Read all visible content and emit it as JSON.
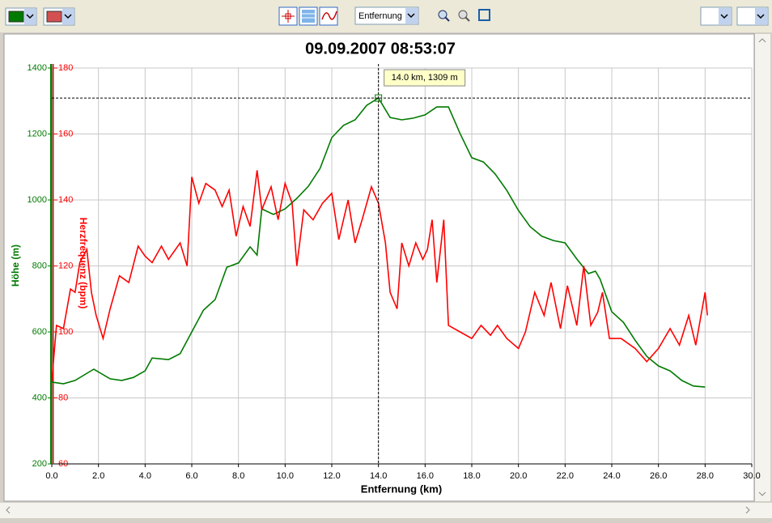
{
  "toolbar": {
    "axis_select": "Entfernung"
  },
  "chart_data": {
    "type": "line",
    "title": "09.09.2007 08:53:07",
    "xlabel": "Entfernung (km)",
    "ylabel": "Höhe (m)",
    "y2label": "Herzfrequenz (bpm)",
    "xlim": [
      0,
      30
    ],
    "xticks": [
      {
        "value": 0,
        "label": "0.0"
      },
      {
        "value": 2,
        "label": "2.0"
      },
      {
        "value": 4,
        "label": "4.0"
      },
      {
        "value": 6,
        "label": "6.0"
      },
      {
        "value": 8,
        "label": "8.0"
      },
      {
        "value": 10,
        "label": "10.0"
      },
      {
        "value": 12,
        "label": "12.0"
      },
      {
        "value": 14,
        "label": "14.0"
      },
      {
        "value": 16,
        "label": "16.0"
      },
      {
        "value": 18,
        "label": "18.0"
      },
      {
        "value": 20,
        "label": "20.0"
      },
      {
        "value": 22,
        "label": "22.0"
      },
      {
        "value": 24,
        "label": "24.0"
      },
      {
        "value": 26,
        "label": "26.0"
      },
      {
        "value": 28,
        "label": "28.0"
      },
      {
        "value": 30,
        "label": "30.0"
      }
    ],
    "ylim": [
      200,
      1400
    ],
    "yticks": [
      200,
      400,
      600,
      800,
      1000,
      1200,
      1400
    ],
    "y2lim": [
      60,
      180
    ],
    "y2ticks": [
      60,
      80,
      100,
      120,
      140,
      160,
      180
    ],
    "grid": true,
    "series": [
      {
        "color": "#007a00",
        "x": [
          0,
          0.5,
          1,
          1.8,
          2.5,
          3,
          3.5,
          4,
          4.3,
          5,
          5.5,
          6,
          6.5,
          7,
          7.5,
          8,
          8.5,
          8.8,
          9,
          9.5,
          10,
          10.5,
          11,
          11.5,
          12,
          12.5,
          13,
          13.5,
          14,
          14.5,
          15,
          15.5,
          16,
          16.5,
          17,
          17.5,
          18,
          18.5,
          19,
          19.5,
          20,
          20.5,
          21,
          21.5,
          22,
          22.5,
          23,
          23.3,
          23.5,
          24,
          24.5,
          25,
          25.5,
          26,
          26.5,
          27,
          27.5,
          28
        ],
        "values": [
          448,
          443,
          453,
          487,
          458,
          453,
          462,
          482,
          521,
          516,
          534,
          600,
          666,
          698,
          796,
          809,
          858,
          833,
          973,
          956,
          973,
          1005,
          1042,
          1096,
          1189,
          1226,
          1243,
          1287,
          1309,
          1250,
          1243,
          1248,
          1258,
          1282,
          1282,
          1201,
          1128,
          1115,
          1079,
          1029,
          968,
          919,
          890,
          877,
          870,
          821,
          777,
          784,
          760,
          661,
          629,
          575,
          526,
          497,
          482,
          453,
          436,
          433
        ]
      },
      {
        "color": "#ff0000",
        "axis": "y2",
        "x": [
          0,
          0.2,
          0.5,
          0.8,
          1,
          1.2,
          1.5,
          1.7,
          1.9,
          2.2,
          2.5,
          2.9,
          3.3,
          3.7,
          4,
          4.3,
          4.7,
          5,
          5.5,
          5.8,
          6,
          6.3,
          6.6,
          7,
          7.3,
          7.6,
          7.9,
          8.2,
          8.5,
          8.8,
          9,
          9.4,
          9.7,
          10,
          10.3,
          10.5,
          10.8,
          11.2,
          11.6,
          12,
          12.3,
          12.7,
          13,
          13.3,
          13.7,
          14,
          14.3,
          14.5,
          14.8,
          15,
          15.3,
          15.6,
          15.9,
          16.1,
          16.3,
          16.5,
          16.8,
          17,
          17.5,
          18,
          18.4,
          18.8,
          19.1,
          19.5,
          20,
          20.3,
          20.7,
          21.1,
          21.4,
          21.8,
          22.1,
          22.5,
          22.8,
          23.1,
          23.4,
          23.6,
          23.9,
          24.4,
          25,
          25.5,
          26,
          26.5,
          26.9,
          27.3,
          27.6,
          28,
          28.1
        ],
        "values": [
          85,
          102,
          101,
          113,
          112,
          121,
          125,
          112,
          105,
          98,
          107,
          117,
          115,
          126,
          123,
          121,
          126,
          122,
          127,
          120,
          147,
          139,
          145,
          143,
          138,
          143,
          129,
          138,
          132,
          149,
          137,
          144,
          134,
          145,
          139,
          120,
          137,
          134,
          139,
          142,
          128,
          140,
          127,
          134,
          144,
          139,
          127,
          112,
          107,
          127,
          120,
          127,
          122,
          125,
          134,
          115,
          134,
          102,
          100,
          98,
          102,
          99,
          102,
          98,
          95,
          100,
          112,
          105,
          115,
          101,
          114,
          102,
          120,
          102,
          106,
          112,
          98,
          98,
          95,
          91,
          95,
          101,
          96,
          105,
          96,
          112,
          105
        ]
      }
    ],
    "annotation": {
      "text": "14.0 km, 1309 m",
      "x": 14,
      "y": 1309
    }
  }
}
